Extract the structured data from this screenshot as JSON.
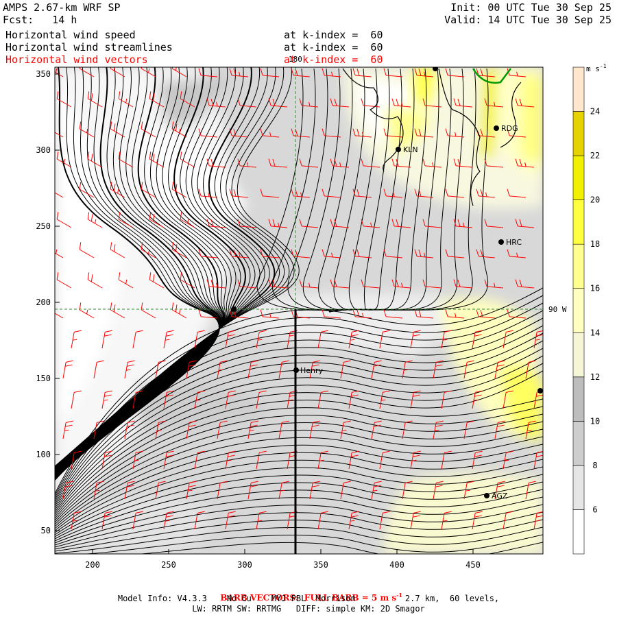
{
  "header": {
    "model": "AMPS 2.67-km WRF SP",
    "forecast": "Fcst:   14 h",
    "init": "Init: 00 UTC Tue 30 Sep 25",
    "valid": "Valid: 14 UTC Tue 30 Sep 25",
    "fields": [
      {
        "name": "Horizontal wind speed",
        "level": "at k-index =  60",
        "color": "#000000"
      },
      {
        "name": "Horizontal wind streamlines",
        "level": "at k-index =  60",
        "color": "#000000"
      },
      {
        "name": "Horizontal wind vectors",
        "level": "at k-index =  60",
        "color": "#ff0000"
      }
    ]
  },
  "map": {
    "x_ticks": [
      "200",
      "250",
      "300",
      "350",
      "400",
      "450"
    ],
    "y_ticks": [
      "50",
      "100",
      "150",
      "200",
      "250",
      "300",
      "350"
    ],
    "grid_label_lon": "180",
    "grid_label_lat": "90 W",
    "stations": [
      "RDG",
      "KLN",
      "HRC",
      "Henry",
      "AGZ"
    ]
  },
  "colorbar": {
    "unit": "m s",
    "unit_exp": "-1",
    "labels": [
      "6",
      "8",
      "10",
      "12",
      "14",
      "16",
      "18",
      "20",
      "22",
      "24"
    ],
    "colors": [
      "#ffffff",
      "#e6e6e6",
      "#cdcdcd",
      "#bdbdbd",
      "#f5f5d8",
      "#ffffc0",
      "#ffff90",
      "#ffff40",
      "#f0f000",
      "#e6d200",
      "#ffe6cc"
    ]
  },
  "footer": {
    "barb_text": "BARB VECTORS:  FULL BARB = 5 m s",
    "barb_exp": "-1",
    "model_info": "Model Info: V4.3.3    No Cu    MYJ PBL  Morrison          2.7 km,  60 levels,",
    "physics": "LW: RRTM SW: RRTMG   DIFF: simple KM: 2D Smagor"
  }
}
